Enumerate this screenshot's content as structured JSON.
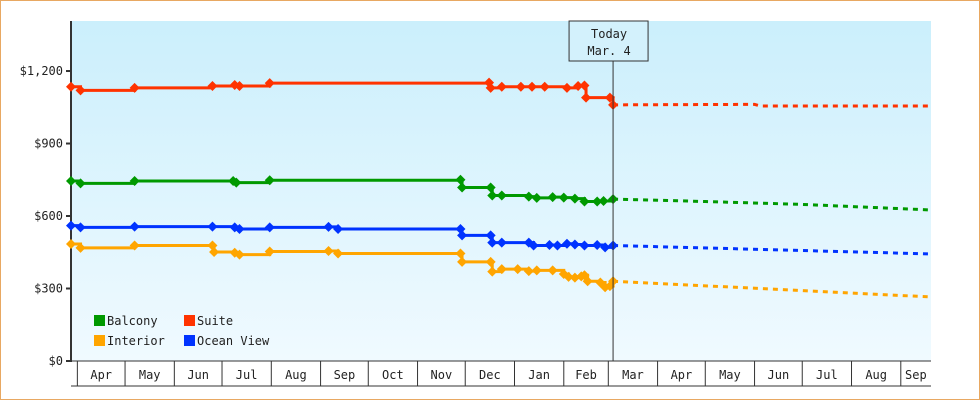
{
  "chart_data": {
    "type": "line",
    "title": "",
    "xlabel": "",
    "ylabel": "",
    "x_range": [
      "2014-03-28",
      "2015-09-20"
    ],
    "ylim": [
      0,
      1400
    ],
    "y_ticks": [
      0,
      300,
      600,
      900,
      1200
    ],
    "y_tick_labels": [
      "$0",
      "$300",
      "$600",
      "$900",
      "$1,200"
    ],
    "x_tick_labels": [
      "Apr",
      "May",
      "Jun",
      "Jul",
      "Aug",
      "Sep",
      "Oct",
      "Nov",
      "Dec",
      "Jan",
      "Feb",
      "Mar",
      "Apr",
      "May",
      "Jun",
      "Jul",
      "Aug",
      "Sep"
    ],
    "x_month_starts": [
      "2014-04-01",
      "2014-05-01",
      "2014-06-01",
      "2014-07-01",
      "2014-08-01",
      "2014-09-01",
      "2014-10-01",
      "2014-11-01",
      "2014-12-01",
      "2015-01-01",
      "2015-02-01",
      "2015-03-01",
      "2015-04-01",
      "2015-05-01",
      "2015-06-01",
      "2015-07-01",
      "2015-08-01",
      "2015-09-01"
    ],
    "grid": false,
    "legend_placement": "bottom-left",
    "today_marker": {
      "date": "2015-03-04",
      "label_line1": "Today",
      "label_line2": "Mar. 4"
    },
    "series": [
      {
        "name": "Balcony",
        "color": "#009900",
        "history": [
          [
            "2014-03-28",
            745
          ],
          [
            "2014-04-03",
            735
          ],
          [
            "2014-05-07",
            745
          ],
          [
            "2014-07-08",
            745
          ],
          [
            "2014-07-10",
            738
          ],
          [
            "2014-07-31",
            748
          ],
          [
            "2014-11-28",
            750
          ],
          [
            "2014-11-29",
            718
          ],
          [
            "2014-12-17",
            718
          ],
          [
            "2014-12-18",
            685
          ],
          [
            "2014-12-24",
            685
          ],
          [
            "2015-01-10",
            680
          ],
          [
            "2015-01-15",
            675
          ],
          [
            "2015-01-25",
            678
          ],
          [
            "2015-02-01",
            676
          ],
          [
            "2015-02-08",
            672
          ],
          [
            "2015-02-14",
            660
          ],
          [
            "2015-02-22",
            660
          ],
          [
            "2015-02-26",
            662
          ],
          [
            "2015-03-04",
            670
          ]
        ],
        "forecast": [
          [
            "2015-03-04",
            670
          ],
          [
            "2015-05-01",
            660
          ],
          [
            "2015-07-01",
            648
          ],
          [
            "2015-09-20",
            625
          ]
        ]
      },
      {
        "name": "Suite",
        "color": "#ff3300",
        "history": [
          [
            "2014-03-28",
            1135
          ],
          [
            "2014-04-03",
            1120
          ],
          [
            "2014-05-07",
            1130
          ],
          [
            "2014-06-25",
            1138
          ],
          [
            "2014-07-09",
            1142
          ],
          [
            "2014-07-12",
            1138
          ],
          [
            "2014-07-31",
            1150
          ],
          [
            "2014-12-16",
            1152
          ],
          [
            "2014-12-17",
            1130
          ],
          [
            "2014-12-24",
            1135
          ],
          [
            "2015-01-05",
            1135
          ],
          [
            "2015-01-12",
            1135
          ],
          [
            "2015-01-20",
            1135
          ],
          [
            "2015-02-03",
            1130
          ],
          [
            "2015-02-10",
            1138
          ],
          [
            "2015-02-14",
            1140
          ],
          [
            "2015-02-15",
            1090
          ],
          [
            "2015-03-02",
            1090
          ],
          [
            "2015-03-04",
            1060
          ]
        ],
        "forecast": [
          [
            "2015-03-04",
            1060
          ],
          [
            "2015-06-01",
            1062
          ],
          [
            "2015-06-05",
            1055
          ],
          [
            "2015-09-20",
            1055
          ]
        ]
      },
      {
        "name": "Interior",
        "color": "#ffa500",
        "history": [
          [
            "2014-03-28",
            484
          ],
          [
            "2014-04-03",
            468
          ],
          [
            "2014-05-07",
            478
          ],
          [
            "2014-06-25",
            478
          ],
          [
            "2014-06-26",
            451
          ],
          [
            "2014-07-09",
            448
          ],
          [
            "2014-07-12",
            440
          ],
          [
            "2014-07-31",
            453
          ],
          [
            "2014-09-06",
            455
          ],
          [
            "2014-09-12",
            445
          ],
          [
            "2014-11-28",
            445
          ],
          [
            "2014-11-29",
            410
          ],
          [
            "2014-12-17",
            410
          ],
          [
            "2014-12-18",
            370
          ],
          [
            "2014-12-24",
            380
          ],
          [
            "2015-01-03",
            380
          ],
          [
            "2015-01-10",
            372
          ],
          [
            "2015-01-15",
            375
          ],
          [
            "2015-01-25",
            375
          ],
          [
            "2015-02-01",
            360
          ],
          [
            "2015-02-04",
            348
          ],
          [
            "2015-02-08",
            345
          ],
          [
            "2015-02-12",
            350
          ],
          [
            "2015-02-14",
            355
          ],
          [
            "2015-02-16",
            330
          ],
          [
            "2015-02-24",
            325
          ],
          [
            "2015-02-27",
            305
          ],
          [
            "2015-03-02",
            310
          ],
          [
            "2015-03-04",
            330
          ]
        ],
        "forecast": [
          [
            "2015-03-04",
            330
          ],
          [
            "2015-09-20",
            265
          ]
        ]
      },
      {
        "name": "Ocean View",
        "color": "#0033ff",
        "history": [
          [
            "2014-03-28",
            560
          ],
          [
            "2014-04-03",
            553
          ],
          [
            "2014-05-07",
            556
          ],
          [
            "2014-06-25",
            556
          ],
          [
            "2014-07-09",
            553
          ],
          [
            "2014-07-12",
            546
          ],
          [
            "2014-07-31",
            553
          ],
          [
            "2014-09-06",
            555
          ],
          [
            "2014-09-12",
            546
          ],
          [
            "2014-11-28",
            546
          ],
          [
            "2014-11-29",
            520
          ],
          [
            "2014-12-17",
            520
          ],
          [
            "2014-12-18",
            490
          ],
          [
            "2014-12-24",
            490
          ],
          [
            "2015-01-10",
            490
          ],
          [
            "2015-01-13",
            478
          ],
          [
            "2015-01-23",
            480
          ],
          [
            "2015-01-28",
            478
          ],
          [
            "2015-02-03",
            485
          ],
          [
            "2015-02-08",
            482
          ],
          [
            "2015-02-14",
            478
          ],
          [
            "2015-02-22",
            480
          ],
          [
            "2015-02-27",
            470
          ],
          [
            "2015-03-04",
            478
          ]
        ],
        "forecast": [
          [
            "2015-03-04",
            478
          ],
          [
            "2015-09-20",
            443
          ]
        ]
      }
    ]
  }
}
